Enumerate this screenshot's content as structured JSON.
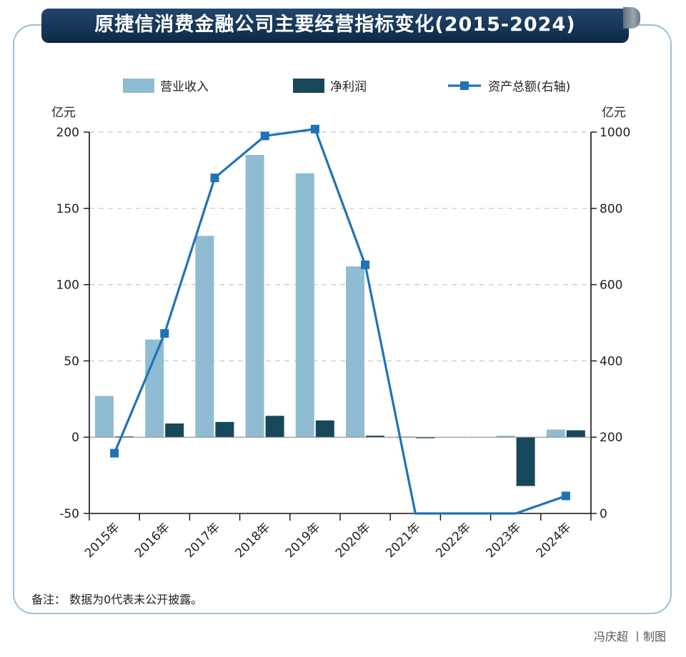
{
  "title": "原捷信消费金融公司主要经营指标变化(2015-2024)",
  "note": "备注： 数据为0代表未公开披露。",
  "credit": "冯庆超 丨制图",
  "colors": {
    "revenue": "#8fbcd3",
    "profit": "#17475a",
    "assets": "#1f73b7",
    "banner": "#1a3a5e",
    "frame": "#9dbfd6"
  },
  "chart_data": {
    "type": "bar",
    "categories": [
      "2015年",
      "2016年",
      "2017年",
      "2018年",
      "2019年",
      "2020年",
      "2021年",
      "2022年",
      "2023年",
      "2024年"
    ],
    "series": [
      {
        "name": "营业收入",
        "type": "bar",
        "axis": "left",
        "values": [
          27,
          64,
          132,
          185,
          173,
          112,
          0.5,
          0,
          1,
          5
        ]
      },
      {
        "name": "净利润",
        "type": "bar",
        "axis": "left",
        "values": [
          0.5,
          9,
          10,
          14,
          11,
          1,
          -0.5,
          0,
          -32,
          4.5
        ]
      },
      {
        "name": "资产总额(右轴)",
        "type": "line",
        "axis": "right",
        "values": [
          158,
          472,
          880,
          990,
          1008,
          652,
          0,
          0,
          0,
          46
        ]
      }
    ],
    "left_axis": {
      "unit": "亿元",
      "range": [
        -50,
        200
      ],
      "ticks": [
        -50,
        0,
        50,
        100,
        150,
        200
      ]
    },
    "right_axis": {
      "unit": "亿元",
      "range": [
        0,
        1000
      ],
      "ticks": [
        0,
        200,
        400,
        600,
        800,
        1000
      ]
    },
    "grid": "horizontal-dashed",
    "legend_position": "top"
  }
}
